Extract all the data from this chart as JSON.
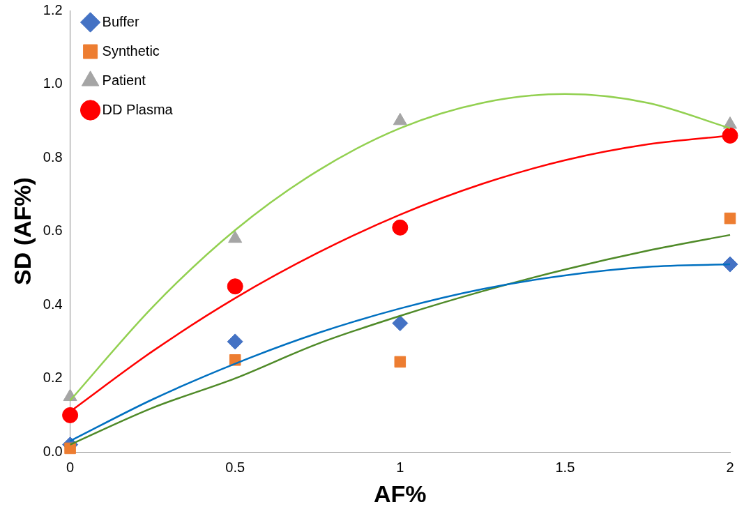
{
  "chart_data": {
    "type": "scatter",
    "xlabel": "AF%",
    "ylabel": "SD (AF%)",
    "xlim": [
      0,
      2
    ],
    "ylim": [
      0,
      1.2
    ],
    "xticks": [
      0,
      0.5,
      1,
      1.5,
      2
    ],
    "yticks": [
      {
        "value": 0,
        "label": "0.0"
      },
      {
        "value": 0.2,
        "label": "0.2"
      },
      {
        "value": 0.4,
        "label": "0.4"
      },
      {
        "value": 0.6,
        "label": "0.6"
      },
      {
        "value": 0.8,
        "label": "0.8"
      },
      {
        "value": 1,
        "label": "1.0"
      },
      {
        "value": 1.2,
        "label": "1.2"
      }
    ],
    "grid": false,
    "legend": "top left",
    "series": [
      {
        "name": "Buffer",
        "type": "scatter",
        "marker": "diamond",
        "color": "#4472c4",
        "x": [
          0,
          0.5,
          1,
          2
        ],
        "values": [
          0.02,
          0.3,
          0.35,
          0.51
        ]
      },
      {
        "name": "Synthetic",
        "type": "scatter",
        "marker": "square",
        "color": "#ed7d31",
        "x": [
          0,
          0.5,
          1,
          2
        ],
        "values": [
          0.01,
          0.25,
          0.245,
          0.635
        ]
      },
      {
        "name": "Patient",
        "type": "scatter",
        "marker": "triangle",
        "color": "#a5a5a5",
        "x": [
          0,
          0.5,
          1,
          2
        ],
        "values": [
          0.15,
          0.58,
          0.9,
          0.89
        ]
      },
      {
        "name": "DD Plasma",
        "type": "scatter",
        "marker": "circle",
        "color": "#ff0000",
        "x": [
          0,
          0.5,
          1,
          2
        ],
        "values": [
          0.1,
          0.45,
          0.61,
          0.86
        ]
      },
      {
        "type": "line",
        "marker": "none",
        "color": "#0070c0",
        "x": [
          0,
          0.25,
          0.5,
          0.75,
          1,
          1.25,
          1.5,
          1.75,
          2
        ],
        "values": [
          0.03,
          0.143,
          0.24,
          0.323,
          0.39,
          0.443,
          0.48,
          0.503,
          0.51
        ]
      },
      {
        "type": "line",
        "marker": "none",
        "color": "#4f8a28",
        "x": [
          0,
          0.25,
          0.5,
          0.75,
          1,
          1.25,
          1.5,
          1.75,
          2
        ],
        "values": [
          0.02,
          0.12,
          0.2,
          0.294,
          0.37,
          0.437,
          0.496,
          0.547,
          0.59
        ]
      },
      {
        "type": "line",
        "marker": "none",
        "color": "#92d050",
        "x": [
          0,
          0.25,
          0.5,
          0.75,
          1,
          1.25,
          1.5,
          1.75,
          2
        ],
        "values": [
          0.14,
          0.394,
          0.603,
          0.764,
          0.88,
          0.949,
          0.973,
          0.949,
          0.88
        ]
      },
      {
        "type": "line",
        "marker": "none",
        "color": "#ff0000",
        "x": [
          0,
          0.25,
          0.5,
          0.75,
          1,
          1.25,
          1.5,
          1.75,
          2
        ],
        "values": [
          0.11,
          0.274,
          0.418,
          0.541,
          0.645,
          0.729,
          0.793,
          0.836,
          0.86
        ]
      }
    ]
  }
}
